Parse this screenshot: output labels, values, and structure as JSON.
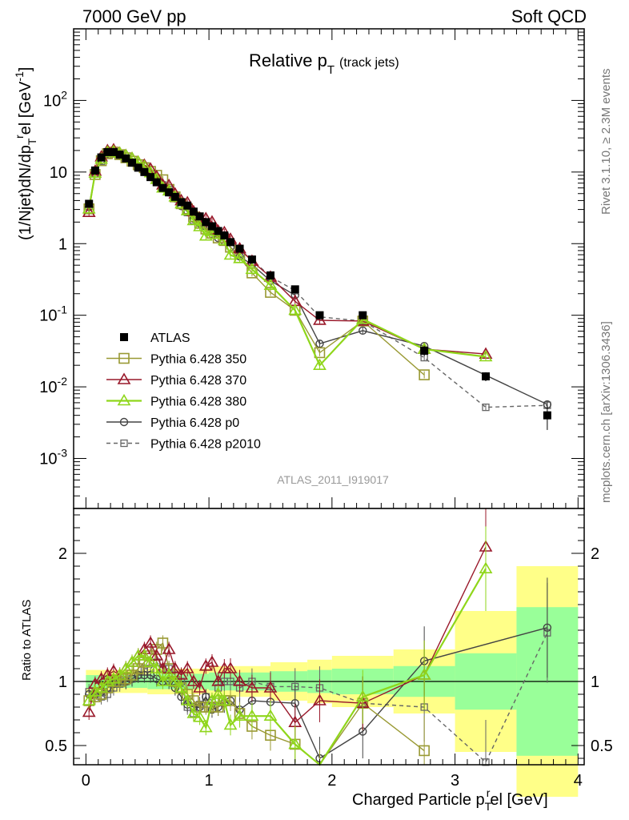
{
  "header": {
    "left": "7000 GeV pp",
    "right": "Soft QCD"
  },
  "side_text": {
    "rivet": "Rivet 3.1.10, ≥ 2.3M events",
    "mcplots": "mcplots.cern.ch [arXiv:1306.3436]"
  },
  "plot_title": "Relative p",
  "plot_title_sub": "T",
  "plot_title_small": "(track jets)",
  "analysis_label": "ATLAS_2011_I919017",
  "ylabel_main": "(1/Njet)dN/dp",
  "ylabel_main_sub": "T",
  "ylabel_main_sup": "r",
  "ylabel_main_rest": "el [GeV",
  "ylabel_main_unit_sup": "-1",
  "ylabel_main_end": "]",
  "ylabel_ratio": "Ratio to ATLAS",
  "xlabel": "Charged Particle p",
  "xlabel_sub": "T",
  "xlabel_sup": "r",
  "xlabel_rest": "el [GeV]",
  "colors": {
    "atlas": "#000000",
    "p350": "#999933",
    "p370": "#99182a",
    "p380": "#8fd61a",
    "p0": "#444444",
    "p2010": "#666666",
    "band_inner": "#99ff99",
    "band_outer": "#ffff88"
  },
  "chart_data": [
    {
      "type": "scatter",
      "panel": "main",
      "yscale": "log",
      "xlim": [
        -0.1,
        4.05
      ],
      "ylim": [
        0.0002,
        1000
      ],
      "y_ticks": [
        "10^-3",
        "10^-2",
        "10^-1",
        "1",
        "10",
        "10^2"
      ],
      "x_ticks": [
        "0",
        "1",
        "2",
        "3",
        "4"
      ],
      "x": [
        0.025,
        0.075,
        0.125,
        0.175,
        0.225,
        0.275,
        0.325,
        0.375,
        0.425,
        0.475,
        0.525,
        0.575,
        0.625,
        0.675,
        0.725,
        0.775,
        0.825,
        0.875,
        0.925,
        0.975,
        1.025,
        1.075,
        1.125,
        1.175,
        1.25,
        1.35,
        1.5,
        1.7,
        1.9,
        2.25,
        2.75,
        3.25,
        3.75
      ],
      "series": [
        {
          "name": "ATLAS",
          "key": "atlas",
          "values": [
            3.6,
            10.5,
            16.0,
            19.0,
            19.0,
            17.5,
            15.5,
            13.5,
            11.5,
            10.0,
            8.5,
            7.2,
            6.0,
            5.2,
            4.5,
            3.8,
            3.4,
            2.8,
            2.4,
            2.0,
            1.75,
            1.5,
            1.3,
            1.05,
            0.85,
            0.6,
            0.36,
            0.23,
            0.1,
            0.1,
            0.032,
            0.014,
            0.004
          ],
          "errors": [
            0.3,
            0.6,
            0.8,
            0.9,
            0.9,
            0.8,
            0.7,
            0.6,
            0.5,
            0.45,
            0.4,
            0.35,
            0.3,
            0.28,
            0.25,
            0.22,
            0.2,
            0.17,
            0.15,
            0.13,
            0.12,
            0.1,
            0.09,
            0.08,
            0.07,
            0.05,
            0.03,
            0.02,
            0.01,
            0.012,
            0.005,
            0.002,
            0.0015
          ]
        },
        {
          "name": "Pythia 6.428 350",
          "key": "p350",
          "ratio": [
            0.85,
            0.88,
            0.9,
            0.95,
            1.0,
            1.0,
            1.02,
            1.05,
            1.1,
            1.15,
            1.2,
            1.25,
            1.3,
            1.1,
            1.0,
            0.95,
            0.9,
            0.85,
            0.8,
            0.8,
            0.8,
            0.8,
            0.85,
            0.85,
            0.75,
            0.65,
            0.58,
            0.51,
            0.3,
            0.83,
            0.46,
            null,
            null
          ]
        },
        {
          "name": "Pythia 6.428 370",
          "key": "p370",
          "ratio": [
            0.76,
            0.98,
            1.02,
            1.05,
            1.08,
            1.05,
            1.1,
            1.15,
            1.2,
            1.25,
            1.3,
            1.2,
            1.1,
            1.25,
            1.1,
            1.05,
            1.1,
            1.0,
            0.95,
            1.12,
            1.15,
            1.0,
            1.1,
            1.1,
            1.0,
            0.95,
            0.95,
            0.68,
            0.85,
            0.83,
            1.05,
            2.05,
            null
          ]
        },
        {
          "name": "Pythia 6.428 380",
          "key": "p380",
          "ratio": [
            0.85,
            0.92,
            0.95,
            1.0,
            1.02,
            1.05,
            1.1,
            1.15,
            1.2,
            1.2,
            1.15,
            1.1,
            1.0,
            1.05,
            1.0,
            0.95,
            0.85,
            0.75,
            0.72,
            0.64,
            0.85,
            0.9,
            0.85,
            0.66,
            0.73,
            0.73,
            0.73,
            0.51,
            0.2,
            0.88,
            1.05,
            1.88,
            null
          ]
        },
        {
          "name": "Pythia 6.428 p0",
          "key": "p0",
          "ratio": [
            0.9,
            0.9,
            0.92,
            0.95,
            0.98,
            1.0,
            1.0,
            1.02,
            1.05,
            1.05,
            1.05,
            1.02,
            1.0,
            1.0,
            0.95,
            0.88,
            0.82,
            0.8,
            0.8,
            0.88,
            0.78,
            0.8,
            0.83,
            0.85,
            0.78,
            0.85,
            0.84,
            0.83,
            0.4,
            0.61,
            1.16,
            null,
            1.42
          ]
        },
        {
          "name": "Pythia 6.428 p2010",
          "key": "p2010",
          "ratio": [
            0.92,
            0.9,
            0.88,
            0.9,
            0.95,
            0.98,
            1.0,
            1.02,
            1.05,
            1.1,
            1.1,
            1.15,
            1.1,
            1.1,
            1.05,
            1.0,
            0.8,
            0.75,
            0.82,
            0.88,
            0.85,
            0.95,
            1.0,
            1.0,
            0.95,
            1.0,
            0.96,
            0.96,
            0.95,
            0.83,
            0.8,
            0.37,
            1.38
          ]
        }
      ]
    },
    {
      "type": "scatter",
      "panel": "ratio",
      "ylim": [
        0.35,
        2.35
      ],
      "y_ticks": [
        "0.5",
        "1",
        "2"
      ],
      "band_edges": [
        0.0,
        0.5,
        1.0,
        1.5,
        1.8,
        2.0,
        2.5,
        3.0,
        3.5,
        4.0
      ],
      "band_inner": [
        0.05,
        0.06,
        0.07,
        0.08,
        0.09,
        0.1,
        0.12,
        0.22,
        0.58
      ],
      "band_outer": [
        0.09,
        0.1,
        0.12,
        0.15,
        0.17,
        0.2,
        0.25,
        0.55,
        0.9
      ]
    }
  ],
  "legend": [
    {
      "key": "atlas",
      "label": "ATLAS"
    },
    {
      "key": "p350",
      "label": "Pythia 6.428 350"
    },
    {
      "key": "p370",
      "label": "Pythia 6.428 370"
    },
    {
      "key": "p380",
      "label": "Pythia 6.428 380"
    },
    {
      "key": "p0",
      "label": "Pythia 6.428 p0"
    },
    {
      "key": "p2010",
      "label": "Pythia 6.428 p2010"
    }
  ]
}
